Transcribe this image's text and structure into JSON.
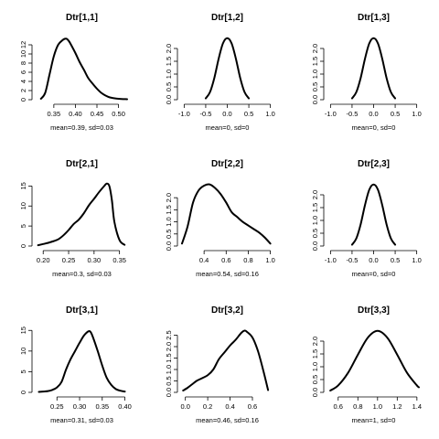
{
  "chart_data": [
    {
      "type": "line",
      "title": "Dtr[1,1]",
      "xlabel": "mean=0.39, sd=0.03",
      "ylabel": "",
      "xlim": [
        0.31,
        0.52
      ],
      "ylim": [
        0,
        14
      ],
      "xticks": [
        0.35,
        0.4,
        0.45,
        0.5
      ],
      "xtick_labels": [
        "0.35",
        "0.40",
        "0.45",
        "0.50"
      ],
      "yticks": [
        0,
        2,
        4,
        6,
        8,
        10,
        12
      ],
      "ytick_labels": [
        "0",
        "2",
        "4",
        "6",
        "8",
        "10",
        "12"
      ],
      "series": [
        {
          "x": [
            0.32,
            0.33,
            0.34,
            0.35,
            0.36,
            0.37,
            0.375,
            0.38,
            0.385,
            0.39,
            0.4,
            0.41,
            0.42,
            0.43,
            0.44,
            0.45,
            0.46,
            0.47,
            0.48,
            0.5,
            0.52
          ],
          "y": [
            0.2,
            1.5,
            5.5,
            9.5,
            12.0,
            13.0,
            13.3,
            13.3,
            12.8,
            12.0,
            10.2,
            8.2,
            6.5,
            4.7,
            3.5,
            2.4,
            1.5,
            0.9,
            0.5,
            0.2,
            0.1
          ]
        }
      ]
    },
    {
      "type": "line",
      "title": "Dtr[1,2]",
      "xlabel": "mean=0, sd=0",
      "ylabel": "",
      "xlim": [
        -1.05,
        1.05
      ],
      "ylim": [
        0,
        2.5
      ],
      "xticks": [
        -1.0,
        -0.5,
        0.0,
        0.5,
        1.0
      ],
      "xtick_labels": [
        "-1.0",
        "-0.5",
        "0.0",
        "0.5",
        "1.0"
      ],
      "yticks": [
        0.0,
        0.5,
        1.0,
        1.5,
        2.0
      ],
      "ytick_labels": [
        "0.0",
        "0.5",
        "1.0",
        "1.5",
        "2.0"
      ],
      "series": [
        {
          "x": [
            -0.5,
            -0.4,
            -0.3,
            -0.2,
            -0.1,
            0.0,
            0.1,
            0.2,
            0.3,
            0.4,
            0.5
          ],
          "y": [
            0.05,
            0.3,
            0.85,
            1.6,
            2.2,
            2.4,
            2.2,
            1.6,
            0.85,
            0.3,
            0.05
          ]
        }
      ]
    },
    {
      "type": "line",
      "title": "Dtr[1,3]",
      "xlabel": "mean=0, sd=0",
      "ylabel": "",
      "xlim": [
        -1.05,
        1.05
      ],
      "ylim": [
        0,
        2.5
      ],
      "xticks": [
        -1.0,
        -0.5,
        0.0,
        0.5,
        1.0
      ],
      "xtick_labels": [
        "-1.0",
        "-0.5",
        "0.0",
        "0.5",
        "1.0"
      ],
      "yticks": [
        0.0,
        0.5,
        1.0,
        1.5,
        2.0
      ],
      "ytick_labels": [
        "0.0",
        "0.5",
        "1.0",
        "1.5",
        "2.0"
      ],
      "series": [
        {
          "x": [
            -0.5,
            -0.4,
            -0.3,
            -0.2,
            -0.1,
            0.0,
            0.1,
            0.2,
            0.3,
            0.4,
            0.5
          ],
          "y": [
            0.05,
            0.3,
            0.85,
            1.6,
            2.2,
            2.4,
            2.2,
            1.6,
            0.85,
            0.3,
            0.05
          ]
        }
      ]
    },
    {
      "type": "line",
      "title": "Dtr[2,1]",
      "xlabel": "mean=0.3, sd=0.03",
      "ylabel": "",
      "xlim": [
        0.187,
        0.365
      ],
      "ylim": [
        0,
        16
      ],
      "xticks": [
        0.2,
        0.25,
        0.3,
        0.35
      ],
      "xtick_labels": [
        "0.20",
        "0.25",
        "0.30",
        "0.35"
      ],
      "yticks": [
        0,
        5,
        10,
        15
      ],
      "ytick_labels": [
        "0",
        "5",
        "10",
        "15"
      ],
      "series": [
        {
          "x": [
            0.19,
            0.2,
            0.21,
            0.22,
            0.23,
            0.24,
            0.25,
            0.26,
            0.27,
            0.28,
            0.29,
            0.3,
            0.31,
            0.32,
            0.325,
            0.33,
            0.335,
            0.34,
            0.35,
            0.36
          ],
          "y": [
            0.2,
            0.5,
            0.8,
            1.2,
            1.7,
            2.7,
            4.0,
            5.5,
            6.6,
            8.2,
            10.2,
            11.8,
            13.5,
            15.0,
            15.6,
            15.0,
            11.5,
            6.0,
            1.5,
            0.3
          ]
        }
      ]
    },
    {
      "type": "line",
      "title": "Dtr[2,2]",
      "xlabel": "mean=0.54, sd=0.16",
      "ylabel": "",
      "xlim": [
        0.2,
        1.02
      ],
      "ylim": [
        0,
        2.65
      ],
      "xticks": [
        0.4,
        0.6,
        0.8,
        1.0
      ],
      "xtick_labels": [
        "0.4",
        "0.6",
        "0.8",
        "1.0"
      ],
      "yticks": [
        0.0,
        0.5,
        1.0,
        1.5,
        2.0
      ],
      "ytick_labels": [
        "0.0",
        "0.5",
        "1.0",
        "1.5",
        "2.0"
      ],
      "series": [
        {
          "x": [
            0.2,
            0.25,
            0.3,
            0.35,
            0.4,
            0.45,
            0.5,
            0.55,
            0.6,
            0.65,
            0.7,
            0.75,
            0.8,
            0.85,
            0.9,
            0.95,
            1.0
          ],
          "y": [
            0.1,
            0.8,
            1.8,
            2.3,
            2.5,
            2.55,
            2.4,
            2.15,
            1.8,
            1.4,
            1.2,
            1.0,
            0.85,
            0.7,
            0.55,
            0.35,
            0.1
          ]
        }
      ]
    },
    {
      "type": "line",
      "title": "Dtr[2,3]",
      "xlabel": "mean=0, sd=0",
      "ylabel": "",
      "xlim": [
        -1.05,
        1.05
      ],
      "ylim": [
        0,
        2.5
      ],
      "xticks": [
        -1.0,
        -0.5,
        0.0,
        0.5,
        1.0
      ],
      "xtick_labels": [
        "-1.0",
        "-0.5",
        "0.0",
        "0.5",
        "1.0"
      ],
      "yticks": [
        0.0,
        0.5,
        1.0,
        1.5,
        2.0
      ],
      "ytick_labels": [
        "0.0",
        "0.5",
        "1.0",
        "1.5",
        "2.0"
      ],
      "series": [
        {
          "x": [
            -0.5,
            -0.4,
            -0.3,
            -0.2,
            -0.1,
            0.0,
            0.1,
            0.2,
            0.3,
            0.4,
            0.5
          ],
          "y": [
            0.05,
            0.3,
            0.85,
            1.6,
            2.2,
            2.4,
            2.2,
            1.6,
            0.85,
            0.3,
            0.05
          ]
        }
      ]
    },
    {
      "type": "line",
      "title": "Dtr[3,1]",
      "xlabel": "mean=0.31, sd=0.03",
      "ylabel": "",
      "xlim": [
        0.205,
        0.405
      ],
      "ylim": [
        0,
        15.5
      ],
      "xticks": [
        0.25,
        0.3,
        0.35,
        0.4
      ],
      "xtick_labels": [
        "0.25",
        "0.30",
        "0.35",
        "0.40"
      ],
      "yticks": [
        0,
        5,
        10,
        15
      ],
      "ytick_labels": [
        "0",
        "5",
        "10",
        "15"
      ],
      "series": [
        {
          "x": [
            0.21,
            0.22,
            0.23,
            0.24,
            0.25,
            0.26,
            0.27,
            0.28,
            0.29,
            0.3,
            0.31,
            0.32,
            0.325,
            0.33,
            0.34,
            0.35,
            0.36,
            0.37,
            0.38,
            0.39,
            0.4
          ],
          "y": [
            0.1,
            0.2,
            0.3,
            0.6,
            1.2,
            2.5,
            5.5,
            8.0,
            10.0,
            12.0,
            13.8,
            14.8,
            14.5,
            13.2,
            10.0,
            6.5,
            3.5,
            1.8,
            0.8,
            0.4,
            0.2
          ]
        }
      ]
    },
    {
      "type": "line",
      "title": "Dtr[3,2]",
      "xlabel": "mean=0.46, sd=0.16",
      "ylabel": "",
      "xlim": [
        -0.03,
        0.78
      ],
      "ylim": [
        0,
        2.8
      ],
      "xticks": [
        0.0,
        0.2,
        0.4,
        0.6
      ],
      "xtick_labels": [
        "0.0",
        "0.2",
        "0.4",
        "0.6"
      ],
      "yticks": [
        0.0,
        0.5,
        1.0,
        1.5,
        2.0,
        2.5
      ],
      "ytick_labels": [
        "0.0",
        "0.5",
        "1.0",
        "1.5",
        "2.0",
        "2.5"
      ],
      "series": [
        {
          "x": [
            -0.02,
            0.02,
            0.06,
            0.1,
            0.15,
            0.2,
            0.25,
            0.3,
            0.35,
            0.4,
            0.45,
            0.5,
            0.53,
            0.55,
            0.6,
            0.65,
            0.7,
            0.74
          ],
          "y": [
            0.08,
            0.2,
            0.35,
            0.5,
            0.62,
            0.75,
            1.0,
            1.45,
            1.75,
            2.05,
            2.3,
            2.6,
            2.7,
            2.65,
            2.4,
            1.8,
            0.9,
            0.1
          ]
        }
      ]
    },
    {
      "type": "line",
      "title": "Dtr[3,3]",
      "xlabel": "mean=1, sd=0",
      "ylabel": "",
      "xlim": [
        0.5,
        1.42
      ],
      "ylim": [
        0,
        2.5
      ],
      "xticks": [
        0.6,
        0.8,
        1.0,
        1.2,
        1.4
      ],
      "xtick_labels": [
        "0.6",
        "0.8",
        "1.0",
        "1.2",
        "1.4"
      ],
      "yticks": [
        0.0,
        0.5,
        1.0,
        1.5,
        2.0
      ],
      "ytick_labels": [
        "0.0",
        "0.5",
        "1.0",
        "1.5",
        "2.0"
      ],
      "series": [
        {
          "x": [
            0.52,
            0.6,
            0.7,
            0.8,
            0.9,
            1.0,
            1.1,
            1.2,
            1.3,
            1.4,
            1.42
          ],
          "y": [
            0.07,
            0.27,
            0.76,
            1.47,
            2.13,
            2.4,
            2.13,
            1.47,
            0.76,
            0.27,
            0.2
          ]
        }
      ]
    }
  ]
}
